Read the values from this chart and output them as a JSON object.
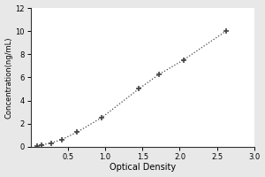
{
  "title": "",
  "xlabel": "Optical Density",
  "ylabel": "Concentration(ng/mL)",
  "x_data": [
    0.08,
    0.15,
    0.27,
    0.42,
    0.62,
    0.95,
    1.45,
    1.72,
    2.05,
    2.62
  ],
  "y_data": [
    0.078,
    0.156,
    0.312,
    0.625,
    1.25,
    2.5,
    5.0,
    6.25,
    7.5,
    10.0
  ],
  "xlim": [
    0,
    3
  ],
  "ylim": [
    0,
    12
  ],
  "xticks": [
    0.5,
    1.0,
    1.5,
    2.0,
    2.5,
    3.0
  ],
  "yticks": [
    0,
    2,
    4,
    6,
    8,
    10,
    12
  ],
  "line_color": "#444444",
  "marker": "+",
  "markersize": 5,
  "markeredgewidth": 1.2,
  "linewidth": 0.9,
  "linestyle": "dotted",
  "fig_bg_color": "#e8e8e8",
  "plot_bg_color": "#ffffff",
  "xlabel_fontsize": 7,
  "ylabel_fontsize": 6,
  "tick_labelsize": 6
}
